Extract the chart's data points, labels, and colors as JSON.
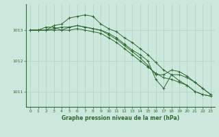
{
  "bg_color": "#cce8dc",
  "grid_color": "#aad0c0",
  "line_color": "#2d6a2d",
  "marker_color": "#2d6a2d",
  "xlabel": "Graphe pression niveau de la mer (hPa)",
  "xlabel_color": "#2d6a2d",
  "tick_color": "#2d6a2d",
  "axis_color": "#2d6a2d",
  "ylim": [
    1010.5,
    1013.85
  ],
  "xlim": [
    -0.5,
    23.5
  ],
  "yticks": [
    1011,
    1012,
    1013
  ],
  "xticks": [
    0,
    1,
    2,
    3,
    4,
    5,
    6,
    7,
    8,
    9,
    10,
    11,
    12,
    13,
    14,
    15,
    16,
    17,
    18,
    19,
    20,
    21,
    22,
    23
  ],
  "series": [
    [
      1013.0,
      1013.0,
      1013.1,
      1013.1,
      1013.0,
      1013.1,
      1013.15,
      1013.1,
      1013.05,
      1013.0,
      1012.85,
      1012.7,
      1012.5,
      1012.3,
      1012.1,
      1011.85,
      1011.55,
      1011.55,
      1011.7,
      1011.65,
      1011.5,
      1011.3,
      1011.1,
      1010.9
    ],
    [
      1013.0,
      1013.0,
      1013.0,
      1013.15,
      1013.2,
      1013.4,
      1013.45,
      1013.5,
      1013.45,
      1013.2,
      1013.05,
      1012.95,
      1012.75,
      1012.6,
      1012.4,
      1012.2,
      1011.95,
      1011.7,
      1011.55,
      1011.35,
      1011.2,
      1011.0,
      1010.9,
      1010.85
    ],
    [
      1013.0,
      1013.0,
      1013.0,
      1013.05,
      1013.1,
      1013.1,
      1013.15,
      1013.1,
      1013.05,
      1013.0,
      1012.9,
      1012.75,
      1012.55,
      1012.35,
      1012.2,
      1012.0,
      1011.4,
      1011.1,
      1011.55,
      1011.55,
      1011.45,
      1011.3,
      1011.1,
      1010.9
    ],
    [
      1013.0,
      1013.0,
      1013.0,
      1013.0,
      1013.0,
      1013.0,
      1013.05,
      1013.0,
      1012.95,
      1012.9,
      1012.75,
      1012.6,
      1012.4,
      1012.2,
      1012.0,
      1011.8,
      1011.6,
      1011.45,
      1011.4,
      1011.3,
      1011.2,
      1011.0,
      1010.9,
      1010.85
    ]
  ],
  "figsize": [
    3.2,
    2.0
  ],
  "dpi": 100
}
